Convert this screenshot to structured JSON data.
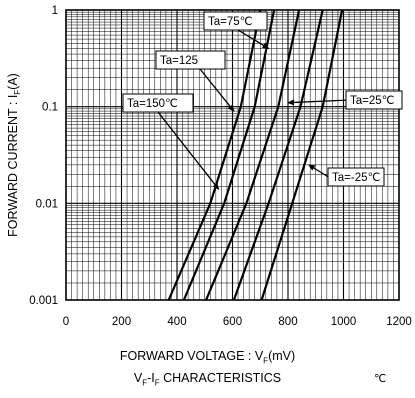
{
  "chart_data": {
    "type": "line",
    "title": "",
    "xlabel": "FORWARD VOLTAGE : V",
    "xlabel_sub": "F",
    "xlabel_unit": "(mV)",
    "ylabel": "FORWARD CURRENT : I",
    "ylabel_sub": "F",
    "ylabel_unit": "(A)",
    "subtitle_parts": [
      "V",
      "F",
      "-I",
      "F",
      " CHARACTERISTICS"
    ],
    "corner_mark": "℃",
    "x_ticks": [
      "0",
      "200",
      "400",
      "600",
      "800",
      "1000",
      "1200"
    ],
    "y_ticks": [
      "0.001",
      "0.01",
      "0.1",
      "1"
    ],
    "xlim": [
      0,
      1200
    ],
    "ylim": [
      0.001,
      1
    ],
    "y_scale": "log",
    "grid": true,
    "series": [
      {
        "name": "Ta=150℃",
        "x": [
          370,
          520,
          630,
          700
        ],
        "y": [
          0.001,
          0.01,
          0.1,
          1
        ]
      },
      {
        "name": "Ta=125",
        "x": [
          425,
          570,
          680,
          750
        ],
        "y": [
          0.001,
          0.01,
          0.1,
          1
        ]
      },
      {
        "name": "Ta=75℃",
        "x": [
          505,
          650,
          765,
          840
        ],
        "y": [
          0.001,
          0.01,
          0.1,
          1
        ]
      },
      {
        "name": "Ta=25℃",
        "x": [
          605,
          730,
          845,
          925
        ],
        "y": [
          0.001,
          0.01,
          0.1,
          1
        ]
      },
      {
        "name": "Ta=-25℃",
        "x": [
          705,
          815,
          925,
          995
        ],
        "y": [
          0.001,
          0.01,
          0.1,
          1
        ]
      }
    ],
    "annotations": [
      {
        "text": "Ta=75℃",
        "target_series": "Ta=75℃",
        "arrow_to": [
          730,
          0.4
        ]
      },
      {
        "text": "Ta=125",
        "target_series": "Ta=125",
        "arrow_to": [
          605,
          0.09
        ]
      },
      {
        "text": "Ta=150℃",
        "target_series": "Ta=150℃",
        "arrow_to": [
          550,
          0.014
        ]
      },
      {
        "text": "Ta=25℃",
        "target_series": "Ta=25℃",
        "arrow_to": [
          800,
          0.11
        ]
      },
      {
        "text": "Ta=-25℃",
        "target_series": "Ta=-25℃",
        "arrow_to": [
          875,
          0.025
        ]
      }
    ]
  }
}
